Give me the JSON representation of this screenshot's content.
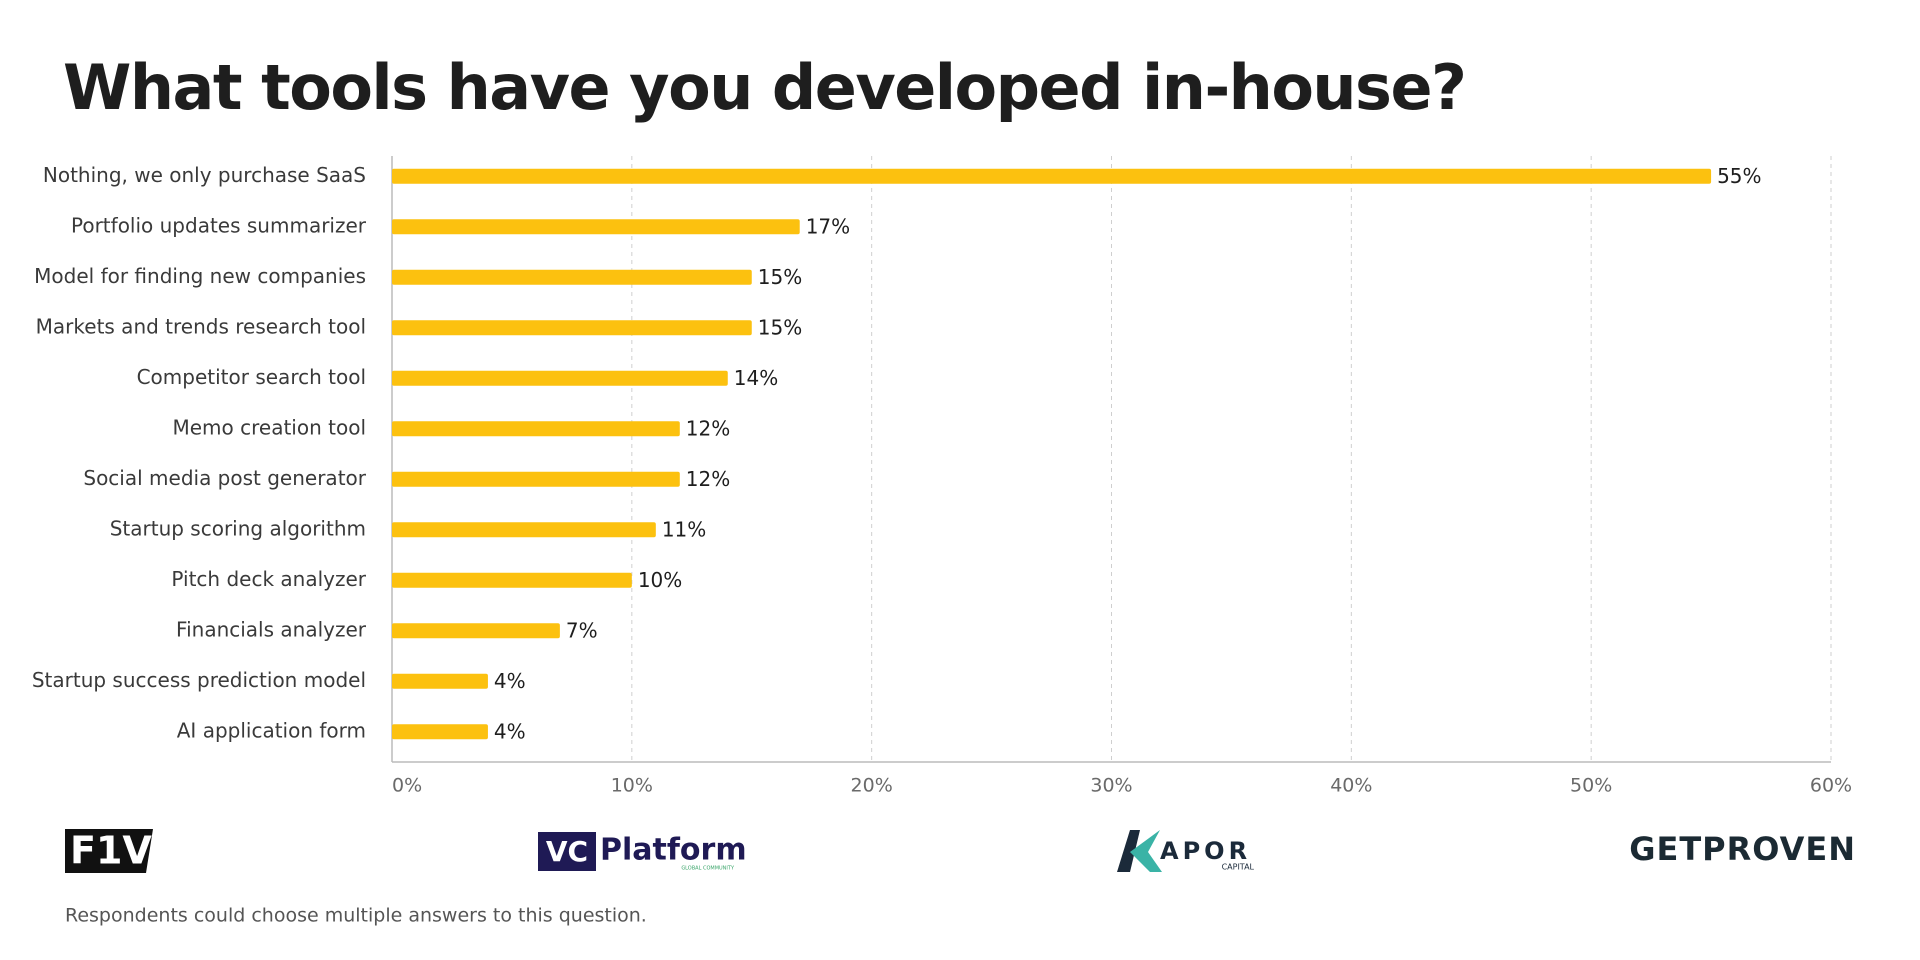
{
  "chart_data": {
    "type": "bar",
    "orientation": "horizontal",
    "title": "What tools have you developed in-house?",
    "categories": [
      "Nothing, we only purchase SaaS",
      "Portfolio updates summarizer",
      "Model for finding new companies",
      "Markets and trends research tool",
      "Competitor search tool",
      "Memo creation tool",
      "Social media post generator",
      "Startup scoring algorithm",
      "Pitch deck analyzer",
      "Financials analyzer",
      "Startup success prediction model",
      "AI application form"
    ],
    "values": [
      55,
      17,
      15,
      15,
      14,
      12,
      12,
      11,
      10,
      7,
      4,
      4
    ],
    "value_labels": [
      "55%",
      "17%",
      "15%",
      "15%",
      "14%",
      "12%",
      "12%",
      "11%",
      "10%",
      "7%",
      "4%",
      "4%"
    ],
    "color": "#fcc10f",
    "xlim": [
      0,
      60
    ],
    "xticks": [
      {
        "value": 0,
        "label": "0%"
      },
      {
        "value": 10,
        "label": "10%"
      },
      {
        "value": 20,
        "label": "20%"
      },
      {
        "value": 30,
        "label": "30%"
      },
      {
        "value": 40,
        "label": "40%"
      },
      {
        "value": 50,
        "label": "50%"
      },
      {
        "value": 60,
        "label": "60%"
      }
    ],
    "grid": true
  },
  "logos": {
    "f1v": "F1V",
    "vc": "VC",
    "platform": "Platform",
    "platform_sub": "GLOBAL COMMUNITY",
    "kapor": "APOR",
    "kapor_sub": "CAPITAL",
    "getproven": "GETPROVEN"
  },
  "footnote": "Respondents could choose multiple answers to this question."
}
